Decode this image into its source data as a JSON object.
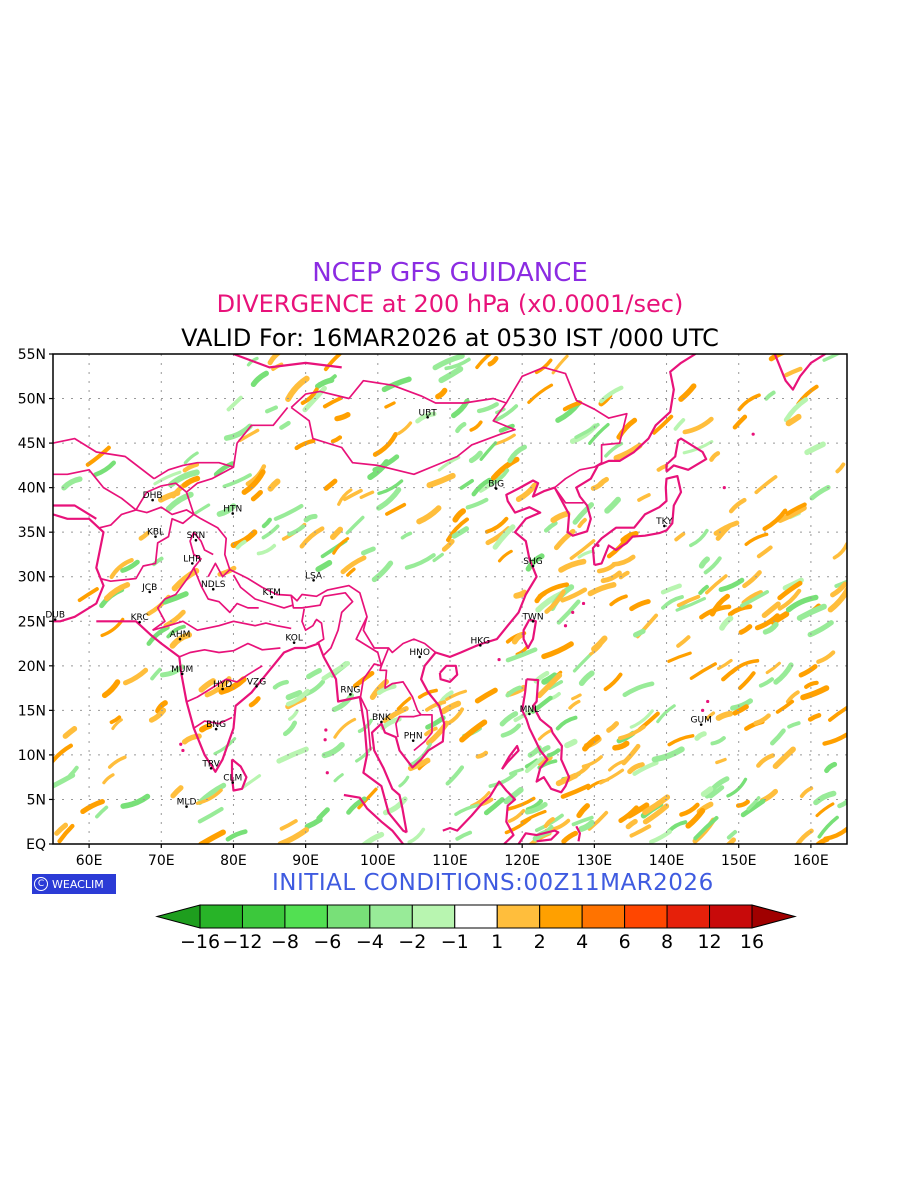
{
  "header": {
    "title": "NCEP GFS GUIDANCE",
    "subtitle": "DIVERGENCE at 200 hPa (x0.0001/sec)",
    "valid": "VALID For: 16MAR2026 at 0530 IST /000 UTC"
  },
  "footer": {
    "initial_conditions": "INITIAL CONDITIONS:00Z11MAR2026",
    "logo_text": "WEACLIM"
  },
  "map": {
    "lon_range": [
      55,
      165
    ],
    "lat_range": [
      0,
      55
    ],
    "lat_ticks": [
      {
        "v": 55,
        "label": "55N"
      },
      {
        "v": 50,
        "label": "50N"
      },
      {
        "v": 45,
        "label": "45N"
      },
      {
        "v": 40,
        "label": "40N"
      },
      {
        "v": 35,
        "label": "35N"
      },
      {
        "v": 30,
        "label": "30N"
      },
      {
        "v": 25,
        "label": "25N"
      },
      {
        "v": 20,
        "label": "20N"
      },
      {
        "v": 15,
        "label": "15N"
      },
      {
        "v": 10,
        "label": "10N"
      },
      {
        "v": 5,
        "label": "5N"
      },
      {
        "v": 0,
        "label": "EQ"
      }
    ],
    "lon_ticks": [
      {
        "v": 60,
        "label": "60E"
      },
      {
        "v": 70,
        "label": "70E"
      },
      {
        "v": 80,
        "label": "80E"
      },
      {
        "v": 90,
        "label": "90E"
      },
      {
        "v": 100,
        "label": "100E"
      },
      {
        "v": 110,
        "label": "110E"
      },
      {
        "v": 120,
        "label": "120E"
      },
      {
        "v": 130,
        "label": "130E"
      },
      {
        "v": 140,
        "label": "140E"
      },
      {
        "v": 150,
        "label": "150E"
      },
      {
        "v": 160,
        "label": "160E"
      }
    ],
    "cities": [
      {
        "code": "UBT",
        "lon": 106.9,
        "lat": 47.9
      },
      {
        "code": "BJG",
        "lon": 116.4,
        "lat": 39.9
      },
      {
        "code": "TKY",
        "lon": 139.7,
        "lat": 35.7
      },
      {
        "code": "SHG",
        "lon": 121.5,
        "lat": 31.2
      },
      {
        "code": "TWN",
        "lon": 121.5,
        "lat": 25.0
      },
      {
        "code": "HKG",
        "lon": 114.2,
        "lat": 22.3
      },
      {
        "code": "HNO",
        "lon": 105.8,
        "lat": 21.0
      },
      {
        "code": "RNG",
        "lon": 96.2,
        "lat": 16.8
      },
      {
        "code": "BNK",
        "lon": 100.5,
        "lat": 13.7
      },
      {
        "code": "PHN",
        "lon": 104.9,
        "lat": 11.6
      },
      {
        "code": "MNL",
        "lon": 121.0,
        "lat": 14.6
      },
      {
        "code": "GUM",
        "lon": 144.8,
        "lat": 13.4
      },
      {
        "code": "LSA",
        "lon": 91.1,
        "lat": 29.6
      },
      {
        "code": "KTM",
        "lon": 85.3,
        "lat": 27.7
      },
      {
        "code": "KOL",
        "lon": 88.4,
        "lat": 22.6
      },
      {
        "code": "NDLS",
        "lon": 77.2,
        "lat": 28.6
      },
      {
        "code": "LHR",
        "lon": 74.3,
        "lat": 31.5
      },
      {
        "code": "SRN",
        "lon": 74.8,
        "lat": 34.1
      },
      {
        "code": "KBL",
        "lon": 69.2,
        "lat": 34.5
      },
      {
        "code": "DHB",
        "lon": 68.8,
        "lat": 38.6
      },
      {
        "code": "HTN",
        "lon": 79.9,
        "lat": 37.1
      },
      {
        "code": "JCB",
        "lon": 68.4,
        "lat": 28.3
      },
      {
        "code": "KRC",
        "lon": 67.0,
        "lat": 24.9
      },
      {
        "code": "DUB",
        "lon": 55.3,
        "lat": 25.2
      },
      {
        "code": "AHM",
        "lon": 72.6,
        "lat": 23.0
      },
      {
        "code": "MUM",
        "lon": 72.9,
        "lat": 19.1
      },
      {
        "code": "HYD",
        "lon": 78.5,
        "lat": 17.4
      },
      {
        "code": "VZG",
        "lon": 83.2,
        "lat": 17.7
      },
      {
        "code": "BNG",
        "lon": 77.6,
        "lat": 12.9
      },
      {
        "code": "TRV",
        "lon": 76.9,
        "lat": 8.5
      },
      {
        "code": "CLM",
        "lon": 79.9,
        "lat": 6.9
      },
      {
        "code": "MLD",
        "lon": 73.5,
        "lat": 4.2
      }
    ]
  },
  "colorbar": {
    "labels": [
      "−16",
      "−12",
      "−8",
      "−6",
      "−4",
      "−2",
      "−1",
      "1",
      "2",
      "4",
      "6",
      "8",
      "12",
      "16"
    ],
    "colors": [
      "#1e9e1e",
      "#28b428",
      "#3cc83c",
      "#52e052",
      "#78e078",
      "#98eb98",
      "#b8f5b0",
      "#ffffff",
      "#ffbe3c",
      "#ffa000",
      "#ff7300",
      "#ff4600",
      "#e6200a",
      "#c80a0a",
      "#a00000"
    ]
  }
}
